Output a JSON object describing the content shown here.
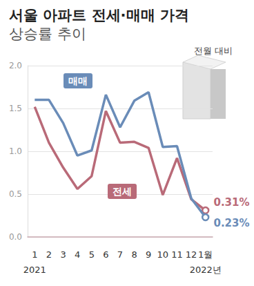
{
  "chart_data": {
    "type": "line",
    "title": "서울 아파트 전세·매매 가격",
    "subtitle": "상승률 추이",
    "annotations": [
      "전월 대비"
    ],
    "categories": [
      "1\n2021",
      "2",
      "3",
      "4",
      "5",
      "6",
      "7",
      "8",
      "9",
      "10",
      "11",
      "12",
      "1월\n2022년"
    ],
    "series": [
      {
        "name": "매매",
        "color": "#6a8cb8",
        "values": [
          1.6,
          1.6,
          1.33,
          0.95,
          1.01,
          1.66,
          1.28,
          1.59,
          1.69,
          1.05,
          1.06,
          0.45,
          0.23
        ],
        "value_labels": [
          null,
          null,
          null,
          null,
          null,
          null,
          null,
          null,
          null,
          null,
          null,
          null,
          "0.23%"
        ]
      },
      {
        "name": "전세",
        "color": "#b96a78",
        "values": [
          1.52,
          1.1,
          0.81,
          0.56,
          0.71,
          1.47,
          1.1,
          1.11,
          1.04,
          0.49,
          0.92,
          0.44,
          0.31
        ],
        "value_labels": [
          null,
          null,
          null,
          null,
          null,
          null,
          null,
          null,
          null,
          null,
          null,
          null,
          "0.31%"
        ]
      }
    ],
    "ylim": [
      0,
      2
    ],
    "yticks": [
      {
        "value": 0,
        "label": "0.0"
      },
      {
        "value": 0.5,
        "label": "0.5"
      },
      {
        "value": 1,
        "label": "1.0"
      },
      {
        "value": 1.5,
        "label": "1.5"
      },
      {
        "value": 2,
        "label": "2.0"
      }
    ],
    "grid": true,
    "data_labels": true
  }
}
